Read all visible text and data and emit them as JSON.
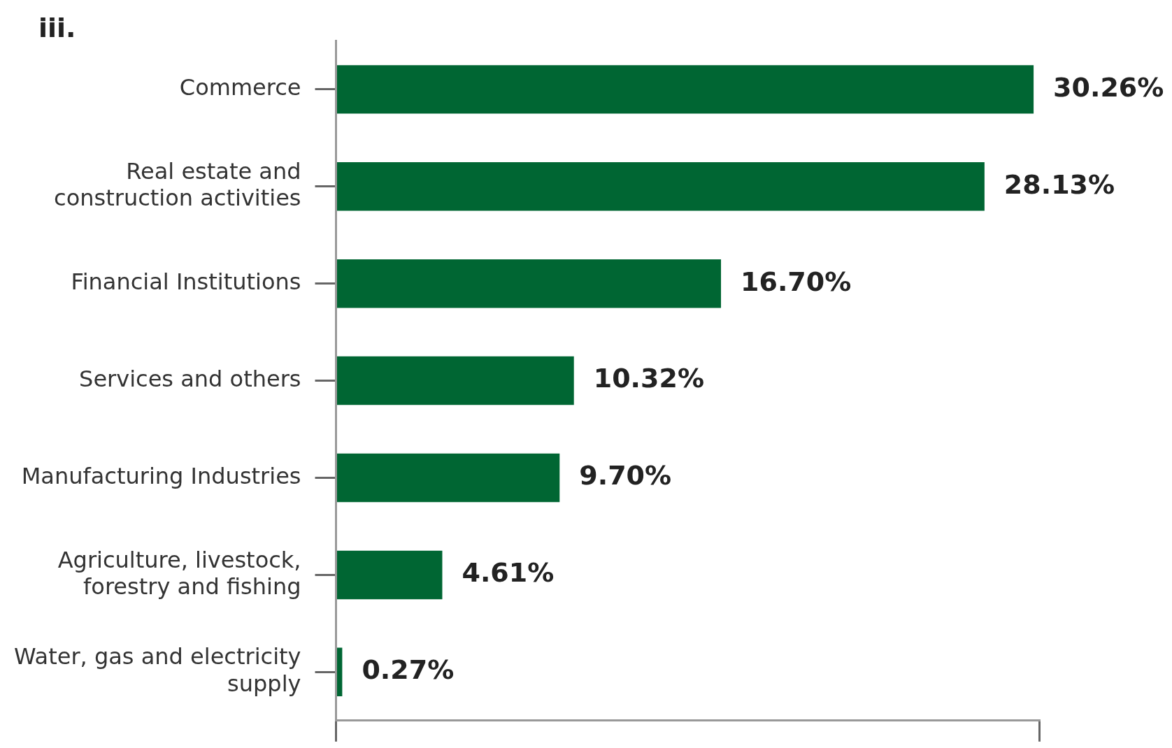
{
  "chart_data": {
    "type": "bar",
    "orientation": "horizontal",
    "title": "iii.",
    "categories": [
      "Commerce",
      "Real estate and construction activities",
      "Financial Institutions",
      "Services and others",
      "Manufacturing Industries",
      "Agriculture, livestock, forestry and fishing",
      "Water, gas and electricity supply"
    ],
    "values": [
      30.26,
      28.13,
      16.7,
      10.32,
      9.7,
      4.61,
      0.27
    ],
    "value_labels": [
      "30.26%",
      "28.13%",
      "16.70%",
      "10.32%",
      "9.70%",
      "4.61%",
      "0.27%"
    ],
    "color": "#006633",
    "xlim": [
      0,
      30.5
    ],
    "tick_labels": "y",
    "grid": false
  }
}
